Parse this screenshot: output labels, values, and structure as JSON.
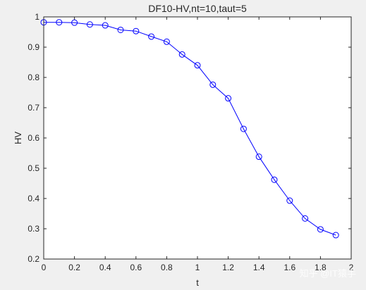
{
  "chart_data": {
    "type": "line",
    "title": "DF10-HV,nt=10,taut=5",
    "xlabel": "t",
    "ylabel": "HV",
    "xlim": [
      0,
      2
    ],
    "ylim": [
      0.2,
      1
    ],
    "xticks": [
      "0",
      "0.2",
      "0.4",
      "0.6",
      "0.8",
      "1",
      "1.2",
      "1.4",
      "1.6",
      "1.8",
      "2"
    ],
    "yticks": [
      "0.2",
      "0.3",
      "0.4",
      "0.5",
      "0.6",
      "0.7",
      "0.8",
      "0.9",
      "1"
    ],
    "grid": false,
    "line_color": "#0000ff",
    "marker": "circle",
    "series": [
      {
        "x": [
          0,
          0.1,
          0.2,
          0.3,
          0.4,
          0.5,
          0.6,
          0.7,
          0.8,
          0.9,
          1.0,
          1.1,
          1.2,
          1.3,
          1.4,
          1.5,
          1.6,
          1.7,
          1.8,
          1.9
        ],
        "y": [
          0.982,
          0.982,
          0.981,
          0.975,
          0.972,
          0.957,
          0.953,
          0.935,
          0.918,
          0.876,
          0.84,
          0.776,
          0.731,
          0.63,
          0.538,
          0.462,
          0.393,
          0.334,
          0.298,
          0.279
        ]
      }
    ]
  },
  "watermark": "知乎 @IT猿手"
}
